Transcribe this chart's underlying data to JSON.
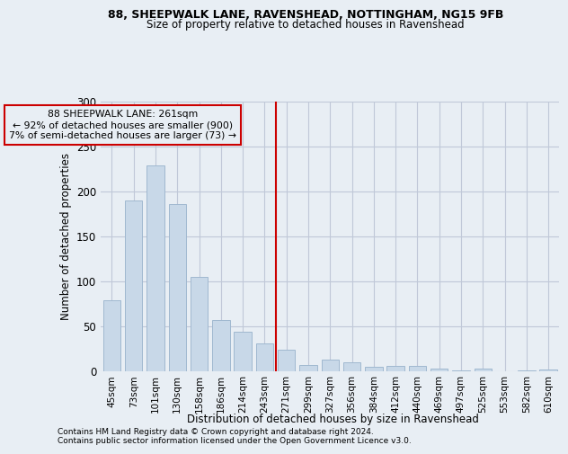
{
  "title1": "88, SHEEPWALK LANE, RAVENSHEAD, NOTTINGHAM, NG15 9FB",
  "title2": "Size of property relative to detached houses in Ravenshead",
  "xlabel": "Distribution of detached houses by size in Ravenshead",
  "ylabel": "Number of detached properties",
  "categories": [
    "45sqm",
    "73sqm",
    "101sqm",
    "130sqm",
    "158sqm",
    "186sqm",
    "214sqm",
    "243sqm",
    "271sqm",
    "299sqm",
    "327sqm",
    "356sqm",
    "384sqm",
    "412sqm",
    "440sqm",
    "469sqm",
    "497sqm",
    "525sqm",
    "553sqm",
    "582sqm",
    "610sqm"
  ],
  "values": [
    79,
    190,
    229,
    186,
    105,
    57,
    44,
    31,
    24,
    7,
    13,
    10,
    5,
    6,
    6,
    3,
    1,
    3,
    0,
    1,
    2
  ],
  "bar_color": "#c8d8e8",
  "bar_edge_color": "#a0b8d0",
  "grid_color": "#c0c8d8",
  "annotation_text_line1": "88 SHEEPWALK LANE: 261sqm",
  "annotation_text_line2": "← 92% of detached houses are smaller (900)",
  "annotation_text_line3": "7% of semi-detached houses are larger (73) →",
  "annotation_box_color": "#cc0000",
  "annotation_line_color": "#cc0000",
  "ylim": [
    0,
    300
  ],
  "yticks": [
    0,
    50,
    100,
    150,
    200,
    250,
    300
  ],
  "footer1": "Contains HM Land Registry data © Crown copyright and database right 2024.",
  "footer2": "Contains public sector information licensed under the Open Government Licence v3.0.",
  "bg_color": "#e8eef4",
  "red_line_x": 8.5
}
